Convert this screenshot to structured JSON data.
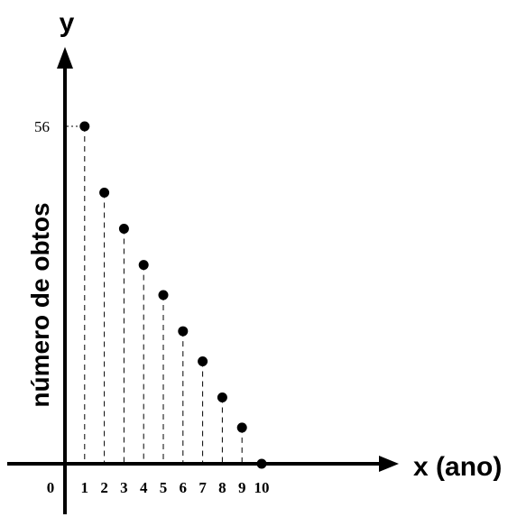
{
  "chart_data": {
    "type": "scatter",
    "title": "",
    "xlabel": "x (ano)",
    "ylabel": "número de obtos",
    "y_axis_letter": "y",
    "origin_label": "0",
    "x_ticks": [
      "1",
      "2",
      "3",
      "4",
      "5",
      "6",
      "7",
      "8",
      "9",
      "10"
    ],
    "y_ticks": [
      "56"
    ],
    "xlim": [
      0,
      10.5
    ],
    "ylim": [
      0,
      56
    ],
    "grid": false,
    "series": [
      {
        "x": [
          1,
          2,
          3,
          4,
          5,
          6,
          7,
          8,
          9,
          10
        ],
        "y": [
          56,
          45,
          39,
          33,
          28,
          22,
          17,
          11,
          6,
          0
        ]
      }
    ]
  }
}
